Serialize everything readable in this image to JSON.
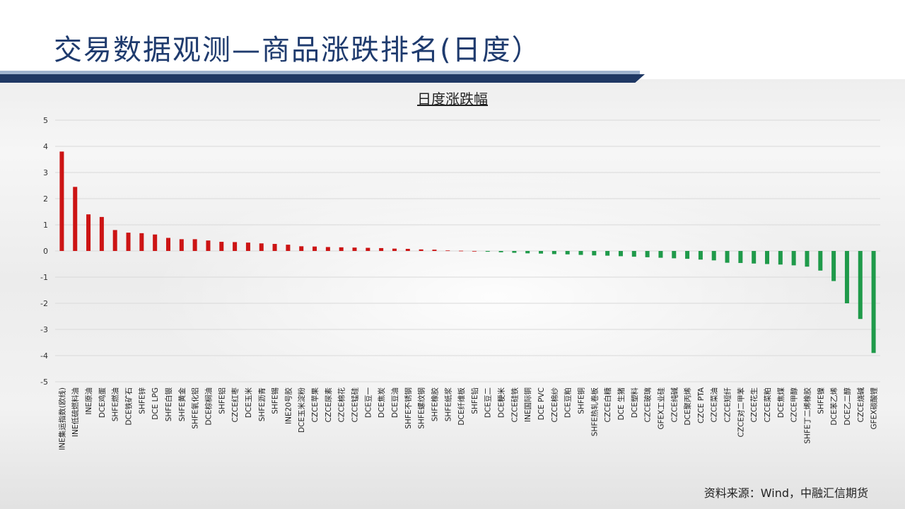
{
  "page": {
    "title": "交易数据观测—商品涨跌排名(日度）",
    "source": "资料来源：Wind，中融汇信期货"
  },
  "colors": {
    "title": "#1f3b6e",
    "header_stripe": "#1f3864",
    "positive": "#cc1414",
    "negative": "#1f9a4a",
    "grid": "#d9d9d9"
  },
  "chart_data": {
    "type": "bar",
    "title": "日度涨跌幅",
    "xlabel": "",
    "ylabel": "",
    "ylim": [
      -5,
      5
    ],
    "yticks": [
      5,
      4,
      3,
      2,
      1,
      0,
      -1,
      -2,
      -3,
      -4,
      -5
    ],
    "grid": true,
    "legend": "none",
    "categories": [
      "INE集运指数(欧线)",
      "INE低硫燃料油",
      "INE原油",
      "DCE鸡蛋",
      "SHFE燃油",
      "DCE铁矿石",
      "SHFE锌",
      "DCE LPG",
      "SHFE白银",
      "SHFE黄金",
      "SHFE氧化铝",
      "DCE棕榈油",
      "SHFE铝",
      "CZCE红枣",
      "DCE玉米",
      "SHFE沥青",
      "SHFE锡",
      "INE20号胶",
      "DCE玉米淀粉",
      "CZCE苹果",
      "CZCE尿素",
      "CZCE棉花",
      "CZCE锰硅",
      "DCE豆一",
      "DCE焦炭",
      "DCE豆油",
      "SHFE不锈钢",
      "SHFE螺纹钢",
      "SHFE橡胶",
      "SHFE纸浆",
      "DCE纤维板",
      "SHFE铅",
      "DCE豆二",
      "DCE粳米",
      "CZCE硅铁",
      "INE国际铜",
      "DCE PVC",
      "CZCE棉纱",
      "DCE豆粕",
      "SHFE铜",
      "SHFE热轧卷板",
      "CZCE白糖",
      "DCE 生猪",
      "DCE塑料",
      "CZCE玻璃",
      "GFEX工业硅",
      "CZCE纯碱",
      "DCE聚丙烯",
      "CZCE PTA",
      "CZCE菜油",
      "CZCE短纤",
      "CZCE对二甲苯",
      "CZCE花生",
      "CZCE菜粕",
      "DCE焦煤",
      "CZCE甲醇",
      "SHFE丁二烯橡胶",
      "SHFE镍",
      "DCE苯乙烯",
      "DCE乙二醇",
      "CZCE烧碱",
      "GFEX碳酸锂"
    ],
    "values": [
      3.8,
      2.45,
      1.4,
      1.3,
      0.8,
      0.7,
      0.68,
      0.63,
      0.5,
      0.45,
      0.45,
      0.4,
      0.35,
      0.34,
      0.32,
      0.29,
      0.27,
      0.24,
      0.18,
      0.17,
      0.15,
      0.14,
      0.13,
      0.12,
      0.11,
      0.09,
      0.08,
      0.06,
      0.05,
      0.02,
      0.01,
      0.0,
      -0.03,
      -0.05,
      -0.07,
      -0.09,
      -0.1,
      -0.12,
      -0.13,
      -0.15,
      -0.17,
      -0.18,
      -0.2,
      -0.22,
      -0.24,
      -0.26,
      -0.28,
      -0.3,
      -0.33,
      -0.36,
      -0.45,
      -0.46,
      -0.48,
      -0.5,
      -0.52,
      -0.55,
      -0.6,
      -0.75,
      -1.15,
      -2.0,
      -2.6,
      -3.9
    ]
  }
}
